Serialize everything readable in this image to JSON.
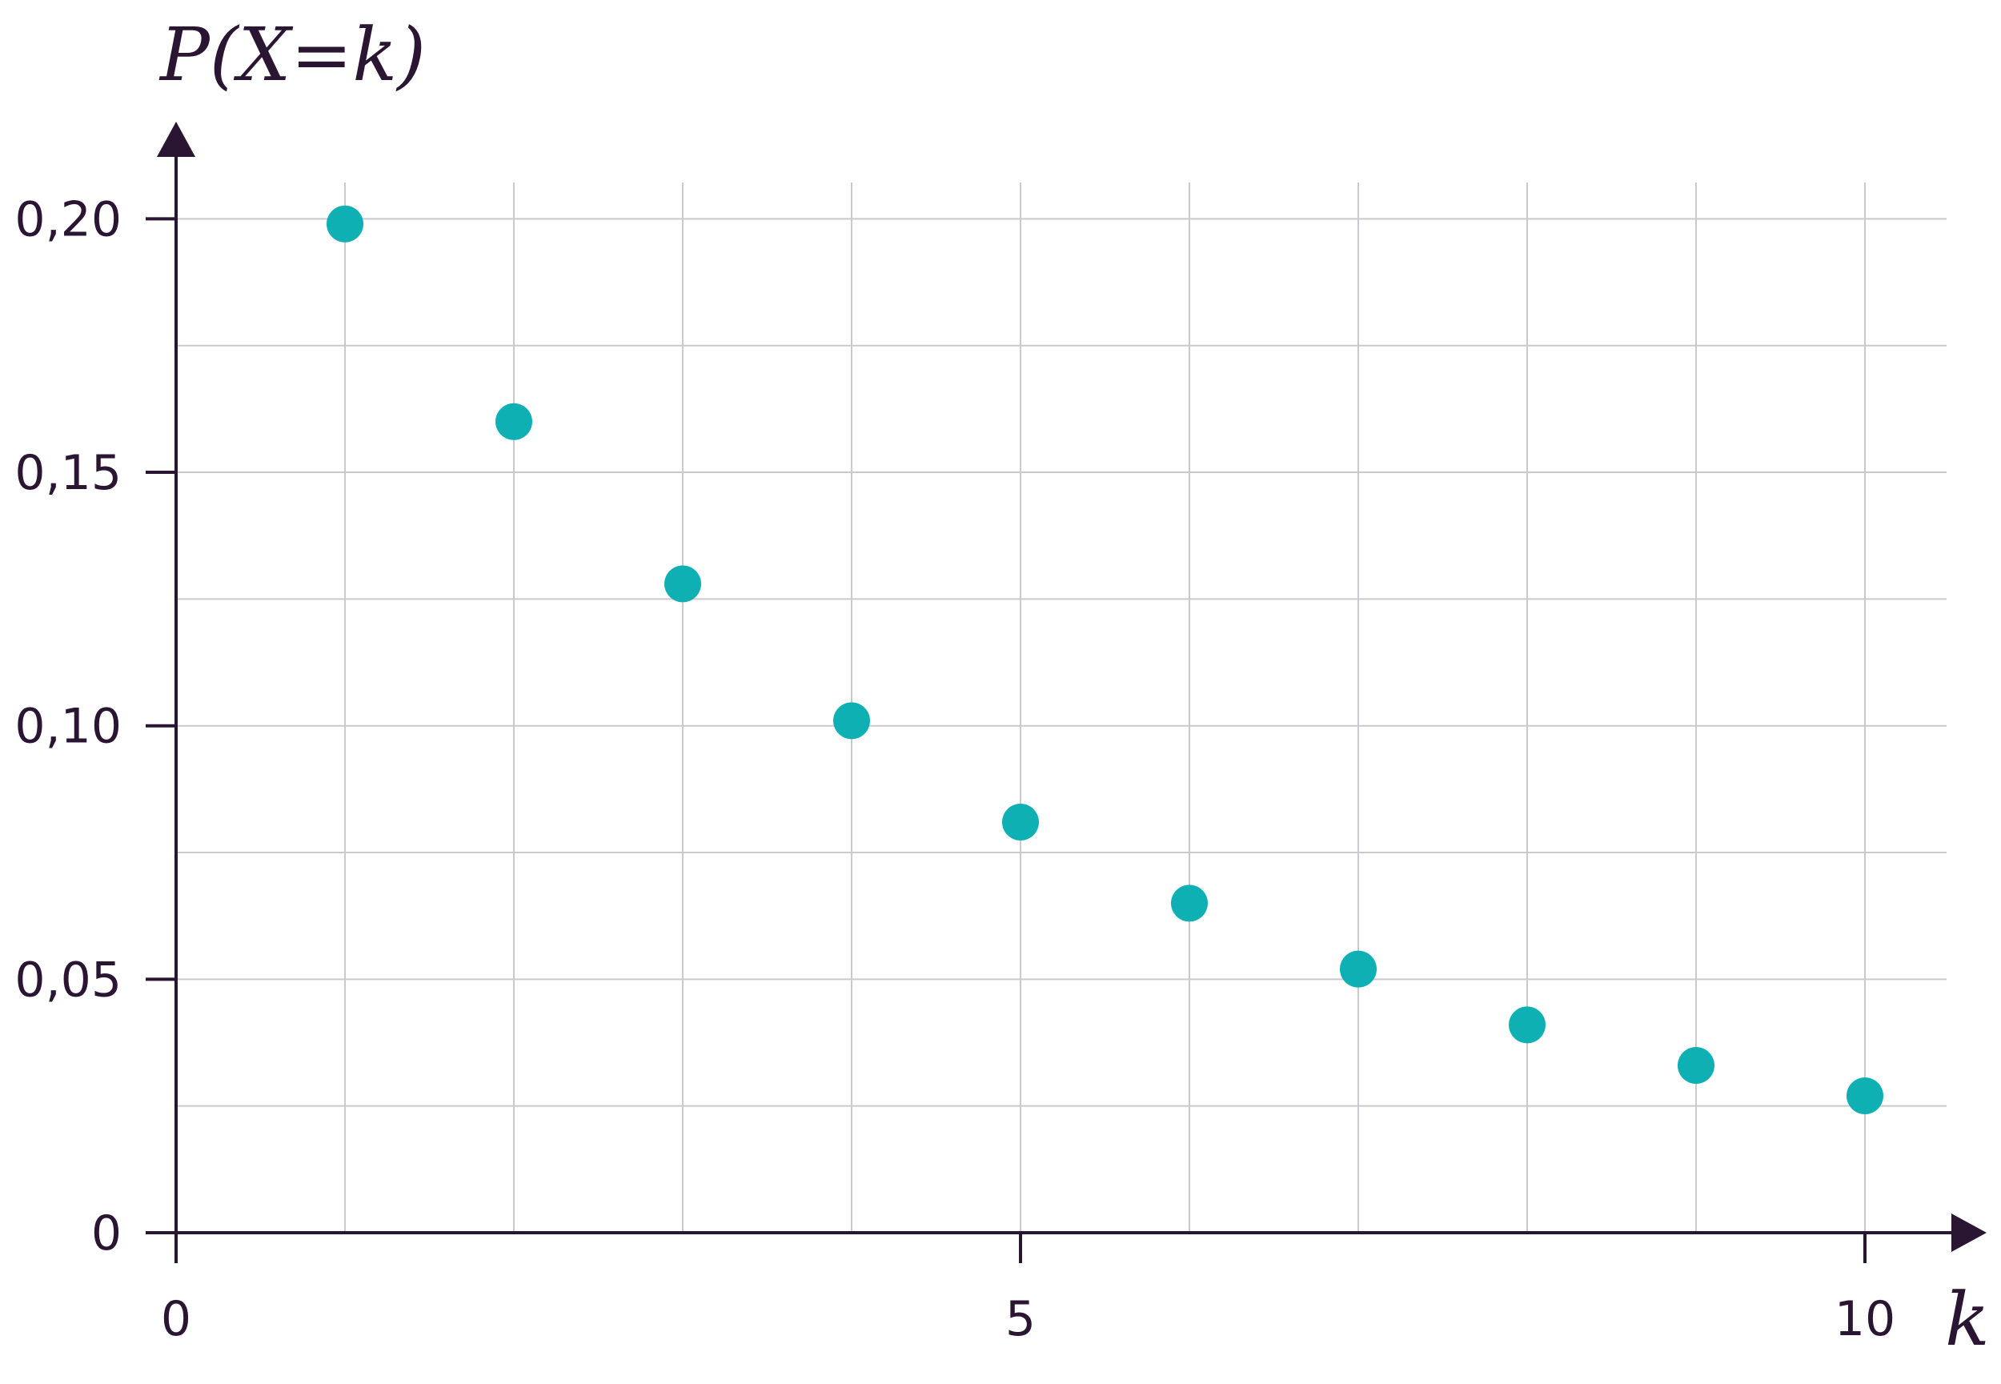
{
  "chart_data": {
    "type": "scatter",
    "ylabel": "P(X=k)",
    "xlabel": "k",
    "xlim": [
      0,
      10.5
    ],
    "ylim": [
      0,
      0.2
    ],
    "x_ticks": [
      0,
      5,
      10
    ],
    "x_tick_labels": [
      "0",
      "5",
      "10"
    ],
    "y_ticks": [
      0,
      0.05,
      0.1,
      0.15,
      0.2
    ],
    "y_tick_labels": [
      "0",
      "0,05",
      "0,10",
      "0,15",
      "0,20"
    ],
    "grid": true,
    "x_grid_step": 1,
    "y_grid_step": 0.025,
    "colors": {
      "points": "#0fb0b4",
      "axis": "#2a1533",
      "grid": "#c9c9cf"
    },
    "x": [
      1,
      2,
      3,
      4,
      5,
      6,
      7,
      8,
      9,
      10
    ],
    "y": [
      0.199,
      0.16,
      0.128,
      0.101,
      0.081,
      0.065,
      0.052,
      0.041,
      0.033,
      0.027
    ]
  }
}
